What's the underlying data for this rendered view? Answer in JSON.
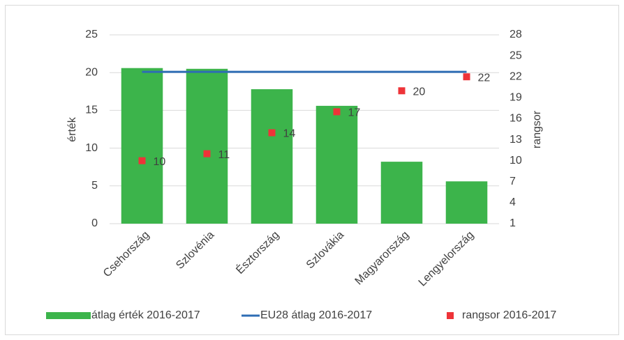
{
  "chart_data": {
    "type": "bar",
    "categories": [
      "Csehország",
      "Szlovénia",
      "Észtország",
      "Szlovákia",
      "Magyarország",
      "Lengyelország"
    ],
    "series": [
      {
        "name": "átlag érték 2016-2017",
        "type": "bar",
        "color": "#3cb44b",
        "values": [
          20.6,
          20.5,
          17.8,
          15.6,
          8.2,
          5.6
        ]
      },
      {
        "name": "EU28  átlag 2016-2017",
        "type": "line",
        "color": "#2e6db4",
        "values": [
          20.1,
          20.1,
          20.1,
          20.1,
          20.1,
          20.1
        ]
      },
      {
        "name": "rangsor 2016-2017",
        "type": "scatter",
        "axis": "y2",
        "color": "#ee3338",
        "values": [
          10,
          11,
          14,
          17,
          20,
          22
        ]
      }
    ],
    "ylabel": "érték",
    "y2label": "rangsor",
    "ylim": [
      0,
      25
    ],
    "yticks": [
      0,
      5,
      10,
      15,
      20,
      25
    ],
    "y2lim": [
      1,
      28
    ],
    "y2ticks": [
      1,
      4,
      7,
      10,
      13,
      16,
      19,
      22,
      25,
      28
    ],
    "grid": true,
    "legend": "bottom"
  }
}
